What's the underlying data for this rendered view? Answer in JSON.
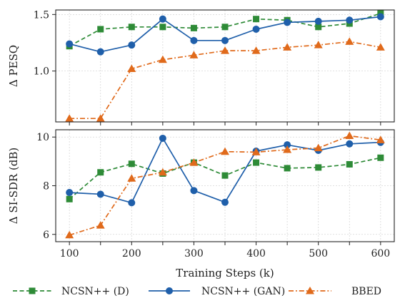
{
  "chart_data": [
    {
      "type": "line",
      "ylabel": "Δ PESQ",
      "xlabel": "",
      "x": [
        100,
        150,
        200,
        250,
        300,
        350,
        400,
        450,
        500,
        550,
        600
      ],
      "xticks": [
        "",
        "",
        "",
        "",
        "",
        "",
        "",
        "",
        "",
        "",
        ""
      ],
      "xlim": [
        78,
        622
      ],
      "ylim": [
        0.55,
        1.54
      ],
      "yticks": [
        1.0,
        1.5
      ],
      "ytick_labels": [
        "1.0",
        "1.5"
      ],
      "grid": true,
      "series": [
        {
          "name": "NCSN++ (D)",
          "color": "#2e8b37",
          "marker": "square",
          "dash": "dashed",
          "values": [
            1.22,
            1.37,
            1.39,
            1.39,
            1.38,
            1.39,
            1.46,
            1.45,
            1.39,
            1.42,
            1.51
          ]
        },
        {
          "name": "NCSN++ (GAN)",
          "color": "#1f5faa",
          "marker": "circle",
          "dash": "solid",
          "values": [
            1.24,
            1.17,
            1.23,
            1.46,
            1.27,
            1.27,
            1.37,
            1.43,
            1.44,
            1.45,
            1.48
          ]
        },
        {
          "name": "BBED",
          "color": "#e06a1b",
          "marker": "triangle",
          "dash": "dashdot",
          "values": [
            0.58,
            0.58,
            1.02,
            1.1,
            1.14,
            1.18,
            1.18,
            1.21,
            1.23,
            1.26,
            1.21
          ]
        }
      ]
    },
    {
      "type": "line",
      "ylabel": "Δ SI-SDR (dB)",
      "xlabel": "Training Steps (k)",
      "x": [
        100,
        150,
        200,
        250,
        300,
        350,
        400,
        450,
        500,
        550,
        600
      ],
      "xticks": [
        "100",
        "",
        "200",
        "",
        "300",
        "",
        "400",
        "",
        "500",
        "",
        "600"
      ],
      "xlim": [
        78,
        622
      ],
      "ylim": [
        5.7,
        10.3
      ],
      "yticks": [
        6,
        8,
        10
      ],
      "ytick_labels": [
        "6",
        "8",
        "10"
      ],
      "grid": true,
      "series": [
        {
          "name": "NCSN++ (D)",
          "color": "#2e8b37",
          "marker": "square",
          "dash": "dashed",
          "values": [
            7.45,
            8.55,
            8.9,
            8.5,
            8.95,
            8.42,
            8.95,
            8.72,
            8.75,
            8.88,
            9.15
          ]
        },
        {
          "name": "NCSN++ (GAN)",
          "color": "#1f5faa",
          "marker": "circle",
          "dash": "solid",
          "values": [
            7.72,
            7.65,
            7.3,
            9.95,
            7.8,
            7.32,
            9.42,
            9.68,
            9.45,
            9.72,
            9.78
          ]
        },
        {
          "name": "BBED",
          "color": "#e06a1b",
          "marker": "triangle",
          "dash": "dashdot",
          "values": [
            5.97,
            6.37,
            8.3,
            8.55,
            8.95,
            9.4,
            9.38,
            9.48,
            9.55,
            10.05,
            9.88
          ]
        }
      ]
    }
  ],
  "legend": {
    "placement": "bottom",
    "items": [
      "NCSN++ (D)",
      "NCSN++ (GAN)",
      "BBED"
    ]
  }
}
